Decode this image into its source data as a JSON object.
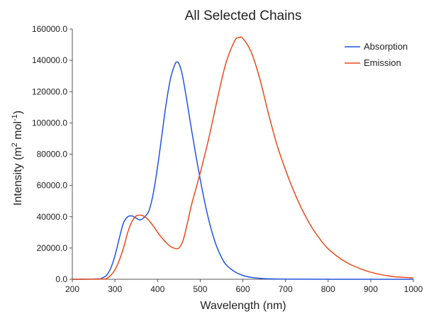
{
  "chart_data": {
    "type": "line",
    "title": "All Selected Chains",
    "xlabel": "Wavelength (nm)",
    "ylabel_main": "Intensity (m",
    "ylabel_sup1": "2",
    "ylabel_mid": " mol",
    "ylabel_sup2": "-1",
    "ylabel_end": ")",
    "xlim": [
      200,
      1000
    ],
    "ylim": [
      0,
      160000
    ],
    "x_ticks": [
      200,
      300,
      400,
      500,
      600,
      700,
      800,
      900,
      1000
    ],
    "x_tick_labels": [
      "200",
      "300",
      "400",
      "500",
      "600",
      "700",
      "800",
      "900",
      "1000"
    ],
    "y_ticks": [
      0,
      20000,
      40000,
      60000,
      80000,
      100000,
      120000,
      140000,
      160000
    ],
    "y_tick_labels": [
      "0.0",
      "20000.0",
      "40000.0",
      "60000.0",
      "80000.0",
      "100000.0",
      "120000.0",
      "140000.0",
      "160000.0"
    ],
    "grid": false,
    "legend_position": "top-right",
    "series": [
      {
        "name": "Absorption",
        "color": "#1f56e0",
        "x": [
          200,
          260,
          270,
          280,
          290,
          300,
          310,
          320,
          330,
          340,
          350,
          360,
          370,
          380,
          390,
          400,
          410,
          420,
          430,
          440,
          445,
          450,
          455,
          460,
          470,
          480,
          490,
          500,
          510,
          520,
          530,
          540,
          550,
          560,
          580,
          600,
          620,
          650,
          700,
          800,
          1000
        ],
        "y": [
          0,
          200,
          800,
          2500,
          7000,
          15000,
          26000,
          36000,
          40000,
          40500,
          39000,
          38000,
          40000,
          44000,
          55000,
          72000,
          92000,
          112000,
          128000,
          137000,
          139000,
          138000,
          134000,
          128000,
          112000,
          95000,
          79000,
          64000,
          50000,
          38000,
          28000,
          20000,
          14000,
          9500,
          5000,
          2500,
          1200,
          400,
          100,
          0,
          0
        ]
      },
      {
        "name": "Emission",
        "color": "#e84a1a",
        "x": [
          200,
          270,
          280,
          290,
          300,
          310,
          320,
          330,
          340,
          350,
          360,
          370,
          380,
          390,
          400,
          410,
          420,
          430,
          440,
          450,
          460,
          470,
          480,
          490,
          500,
          520,
          540,
          560,
          580,
          590,
          600,
          620,
          640,
          660,
          680,
          700,
          720,
          740,
          760,
          780,
          800,
          830,
          860,
          900,
          950,
          1000
        ],
        "y": [
          0,
          100,
          500,
          2500,
          6000,
          12000,
          20000,
          30000,
          37000,
          40500,
          41000,
          40000,
          37500,
          34000,
          30000,
          26500,
          23500,
          21000,
          19800,
          20000,
          25000,
          36000,
          48000,
          58000,
          68000,
          90000,
          115000,
          138000,
          152000,
          154500,
          154000,
          145000,
          128000,
          106000,
          86000,
          70000,
          56000,
          44000,
          34000,
          26000,
          19500,
          13000,
          8500,
          4500,
          1800,
          900
        ]
      }
    ]
  }
}
